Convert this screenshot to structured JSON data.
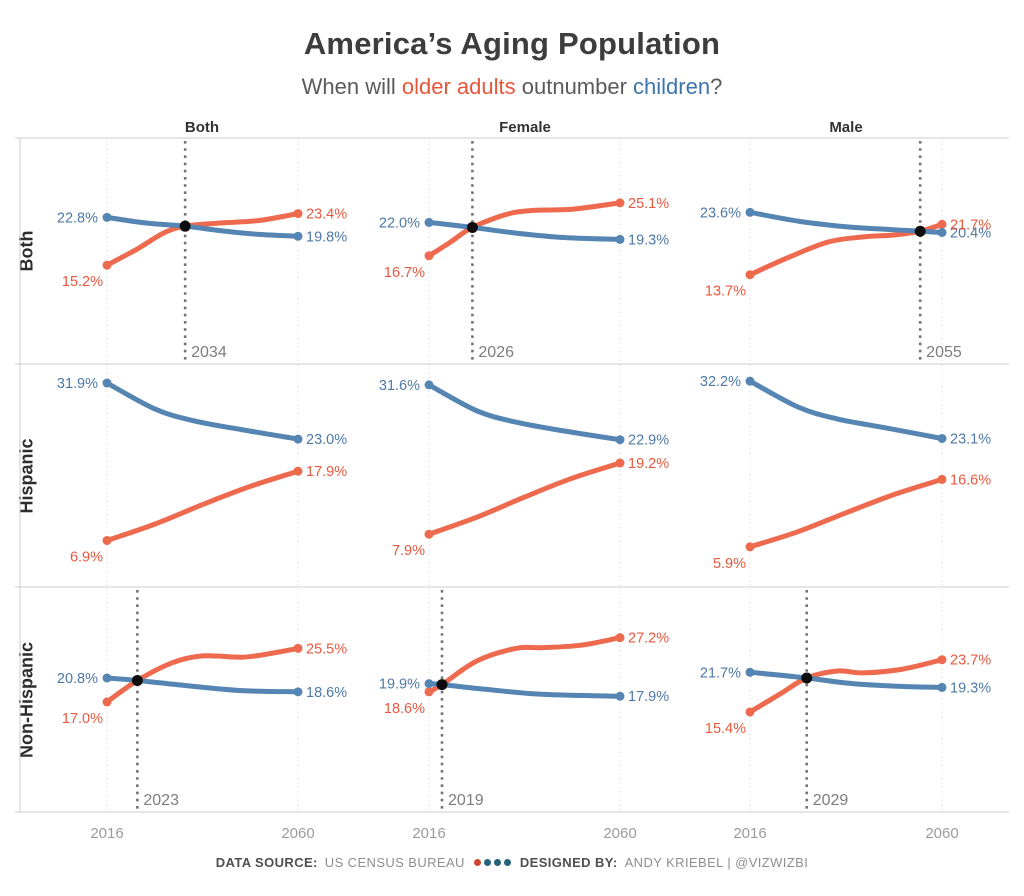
{
  "header": {
    "title": "America’s Aging Population",
    "subtitle_prefix": "When will ",
    "subtitle_older": "older adults",
    "subtitle_mid": " outnumber ",
    "subtitle_children": "children",
    "subtitle_suffix": "?"
  },
  "footer": {
    "source_label": "DATA SOURCE:",
    "source_value": "US CENSUS BUREAU",
    "designed_label": "DESIGNED BY:",
    "designed_value": "ANDY KRIEBEL | @VIZWIZBI"
  },
  "colors": {
    "children_text": "#4e79a7",
    "children_line": "#5585b2",
    "older_text": "#e8593f",
    "older_line": "#ee6a4e",
    "crossover_line": "#737373",
    "crossover_dot": "#0d0d0d",
    "gridline": "#d9d9d9",
    "frame": "#cccccc",
    "tick_text": "#9c9c9c",
    "year_text": "#7d7d7d",
    "footer_dots": [
      "#cf4730",
      "#26617a",
      "#26617a",
      "#26617a"
    ]
  },
  "chart_data": {
    "type": "line",
    "x_years": [
      2016,
      2060
    ],
    "y_unit": "%",
    "ylim": [
      0,
      35
    ],
    "grid": "dotted-vertical-at-2016-and-2060",
    "legend": "encoded in subtitle colors: orange = older adults (65+), blue = children (under 18)",
    "facet_columns": [
      "Both",
      "Female",
      "Male"
    ],
    "facet_rows": [
      "Both",
      "Hispanic",
      "Non-Hispanic"
    ],
    "panels": [
      {
        "row": "Both",
        "col": "Both",
        "crossover_year": 2034,
        "children": [
          [
            2016,
            22.8
          ],
          [
            2025,
            21.9
          ],
          [
            2034,
            21.4
          ],
          [
            2042,
            20.7
          ],
          [
            2051,
            20.1
          ],
          [
            2060,
            19.8
          ]
        ],
        "older_adults": [
          [
            2016,
            15.2
          ],
          [
            2023,
            17.8
          ],
          [
            2029,
            20.3
          ],
          [
            2034,
            21.4
          ],
          [
            2042,
            21.9
          ],
          [
            2051,
            22.3
          ],
          [
            2060,
            23.4
          ]
        ]
      },
      {
        "row": "Both",
        "col": "Female",
        "crossover_year": 2026,
        "children": [
          [
            2016,
            22.0
          ],
          [
            2026,
            21.2
          ],
          [
            2036,
            20.3
          ],
          [
            2047,
            19.6
          ],
          [
            2060,
            19.3
          ]
        ],
        "older_adults": [
          [
            2016,
            16.7
          ],
          [
            2021,
            18.9
          ],
          [
            2026,
            21.2
          ],
          [
            2034,
            23.3
          ],
          [
            2040,
            23.9
          ],
          [
            2049,
            24.1
          ],
          [
            2060,
            25.1
          ]
        ]
      },
      {
        "row": "Both",
        "col": "Male",
        "crossover_year": 2055,
        "children": [
          [
            2016,
            23.6
          ],
          [
            2027,
            22.2
          ],
          [
            2038,
            21.3
          ],
          [
            2047,
            20.9
          ],
          [
            2055,
            20.6
          ],
          [
            2060,
            20.4
          ]
        ],
        "older_adults": [
          [
            2016,
            13.7
          ],
          [
            2025,
            16.5
          ],
          [
            2034,
            18.9
          ],
          [
            2042,
            19.7
          ],
          [
            2049,
            20.0
          ],
          [
            2055,
            20.6
          ],
          [
            2060,
            21.7
          ]
        ]
      },
      {
        "row": "Hispanic",
        "col": "Both",
        "crossover_year": null,
        "children": [
          [
            2016,
            31.9
          ],
          [
            2027,
            27.8
          ],
          [
            2036,
            25.9
          ],
          [
            2047,
            24.5
          ],
          [
            2060,
            23.0
          ]
        ],
        "older_adults": [
          [
            2016,
            6.9
          ],
          [
            2027,
            9.5
          ],
          [
            2038,
            12.6
          ],
          [
            2049,
            15.5
          ],
          [
            2060,
            17.9
          ]
        ]
      },
      {
        "row": "Hispanic",
        "col": "Female",
        "crossover_year": null,
        "children": [
          [
            2016,
            31.6
          ],
          [
            2027,
            27.5
          ],
          [
            2036,
            25.7
          ],
          [
            2047,
            24.3
          ],
          [
            2060,
            22.9
          ]
        ],
        "older_adults": [
          [
            2016,
            7.9
          ],
          [
            2027,
            10.6
          ],
          [
            2038,
            13.8
          ],
          [
            2049,
            16.8
          ],
          [
            2060,
            19.2
          ]
        ]
      },
      {
        "row": "Hispanic",
        "col": "Male",
        "crossover_year": null,
        "children": [
          [
            2016,
            32.2
          ],
          [
            2027,
            28.1
          ],
          [
            2036,
            26.2
          ],
          [
            2047,
            24.8
          ],
          [
            2060,
            23.1
          ]
        ],
        "older_adults": [
          [
            2016,
            5.9
          ],
          [
            2027,
            8.3
          ],
          [
            2038,
            11.3
          ],
          [
            2049,
            14.2
          ],
          [
            2060,
            16.6
          ]
        ]
      },
      {
        "row": "Non-Hispanic",
        "col": "Both",
        "crossover_year": 2023,
        "children": [
          [
            2016,
            20.8
          ],
          [
            2023,
            20.4
          ],
          [
            2034,
            19.6
          ],
          [
            2047,
            18.8
          ],
          [
            2060,
            18.6
          ]
        ],
        "older_adults": [
          [
            2016,
            17.0
          ],
          [
            2023,
            20.4
          ],
          [
            2031,
            23.2
          ],
          [
            2038,
            24.3
          ],
          [
            2047,
            24.1
          ],
          [
            2053,
            24.6
          ],
          [
            2060,
            25.5
          ]
        ]
      },
      {
        "row": "Non-Hispanic",
        "col": "Female",
        "crossover_year": 2019,
        "children": [
          [
            2016,
            19.9
          ],
          [
            2019,
            19.75
          ],
          [
            2029,
            19.0
          ],
          [
            2042,
            18.2
          ],
          [
            2060,
            17.9
          ]
        ],
        "older_adults": [
          [
            2016,
            18.6
          ],
          [
            2019,
            19.75
          ],
          [
            2027,
            23.5
          ],
          [
            2036,
            25.5
          ],
          [
            2042,
            25.6
          ],
          [
            2051,
            26.0
          ],
          [
            2060,
            27.2
          ]
        ]
      },
      {
        "row": "Non-Hispanic",
        "col": "Male",
        "crossover_year": 2029,
        "children": [
          [
            2016,
            21.7
          ],
          [
            2029,
            20.8
          ],
          [
            2038,
            20.0
          ],
          [
            2049,
            19.5
          ],
          [
            2060,
            19.3
          ]
        ],
        "older_adults": [
          [
            2016,
            15.4
          ],
          [
            2023,
            18.3
          ],
          [
            2029,
            20.8
          ],
          [
            2036,
            21.9
          ],
          [
            2042,
            21.6
          ],
          [
            2051,
            22.2
          ],
          [
            2060,
            23.7
          ]
        ]
      }
    ]
  }
}
